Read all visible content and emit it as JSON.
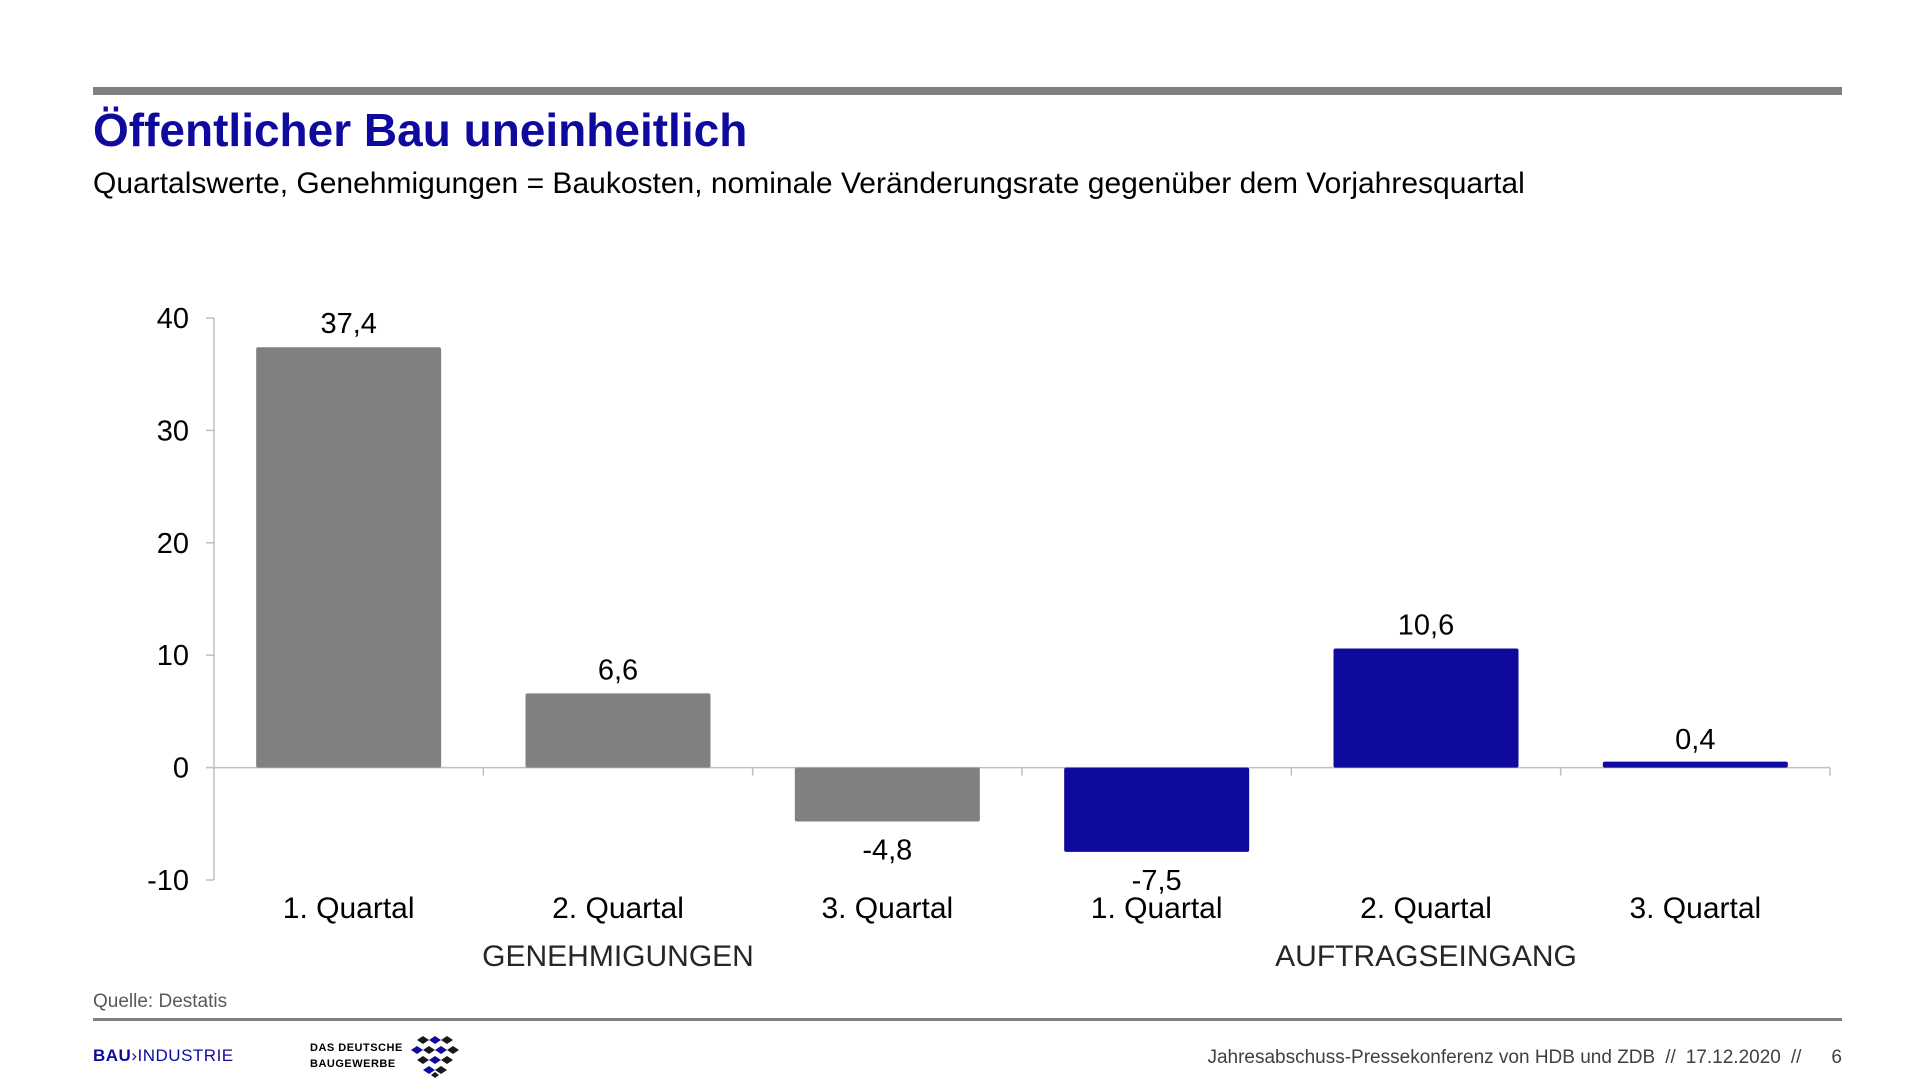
{
  "title": "Öffentlicher Bau uneinheitlich",
  "subtitle": "Quartalswerte, Genehmigungen = Baukosten, nominale Veränderungsrate gegenüber dem Vorjahresquartal",
  "chart_data": {
    "type": "bar",
    "title": "",
    "xlabel": "",
    "ylabel": "",
    "ylim": [
      -10,
      40
    ],
    "yticks": [
      40,
      30,
      20,
      10,
      0,
      -10
    ],
    "grid": false,
    "categories": [
      "1. Quartal",
      "2. Quartal",
      "3. Quartal",
      "1. Quartal",
      "2. Quartal",
      "3. Quartal"
    ],
    "values": [
      37.4,
      6.6,
      -4.8,
      -7.5,
      10.6,
      0.4
    ],
    "value_labels": [
      "37,4",
      "6,6",
      "-4,8",
      "-7,5",
      "10,6",
      "0,4"
    ],
    "groups": [
      {
        "name": "GENEHMIGUNGEN",
        "start": 0,
        "end": 2,
        "color": "#808080"
      },
      {
        "name": "AUFTRAGSEINGANG",
        "start": 3,
        "end": 5,
        "color": "#0f0a9e"
      }
    ]
  },
  "source": "Quelle: Destatis",
  "logos": {
    "bau_part1": "BAU",
    "bau_part2": "INDUSTRIE",
    "zdb_line1": "DAS DEUTSCHE",
    "zdb_line2": "BAUGEWERBE"
  },
  "footer": {
    "event": "Jahresabschuss-Pressekonferenz von HDB und ZDB",
    "sep": "//",
    "date": "17.12.2020",
    "page": "6"
  },
  "colors": {
    "title": "#0f0a9e",
    "group1": "#808080",
    "group2": "#0f0a9e",
    "rule": "#808080"
  }
}
